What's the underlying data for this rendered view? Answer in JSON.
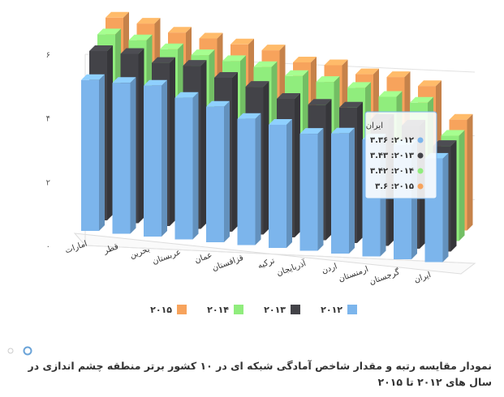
{
  "chart_data": {
    "type": "bar3d",
    "title": "نمودار مقایسه رتبه و مقدار شاخص آمادگی شبکه ای در ۱۰ کشور برتر منطقه چشم اندازی در سال های ۲۰۱۲ تا ۲۰۱۵",
    "categories": [
      "امارات",
      "قطر",
      "بحرین",
      "عربستان",
      "عمان",
      "قزاقستان",
      "ترکیه",
      "آذربایجان",
      "اردن",
      "ارمنستان",
      "گرجستان",
      "ایران"
    ],
    "series": [
      {
        "name": "۲۰۱۲",
        "color": "#7cb5ec",
        "values": [
          4.9,
          4.9,
          4.9,
          4.6,
          4.4,
          4.1,
          4.0,
          3.8,
          3.9,
          3.8,
          3.7,
          3.36
        ]
      },
      {
        "name": "۲۰۱۳",
        "color": "#434348",
        "values": [
          5.5,
          5.5,
          5.3,
          5.3,
          5.0,
          4.8,
          4.5,
          4.4,
          4.4,
          4.1,
          4.0,
          3.43
        ]
      },
      {
        "name": "۲۰۱۴",
        "color": "#90ed7d",
        "values": [
          5.7,
          5.6,
          5.4,
          5.3,
          5.2,
          5.1,
          4.9,
          4.8,
          4.7,
          4.5,
          4.4,
          3.42
        ]
      },
      {
        "name": "۲۰۱۵",
        "color": "#f7a35c",
        "values": [
          5.9,
          5.8,
          5.6,
          5.5,
          5.4,
          5.3,
          5.0,
          5.0,
          4.8,
          4.8,
          4.6,
          3.6
        ]
      }
    ],
    "ylim": [
      0,
      6
    ],
    "yticks": [
      {
        "value": 0,
        "label": "۰"
      },
      {
        "value": 2,
        "label": "۲"
      },
      {
        "value": 4,
        "label": "۴"
      },
      {
        "value": 6,
        "label": "۶"
      }
    ],
    "grid": true,
    "tooltip": {
      "title": "ایران",
      "lines": [
        "۳.۳۶ :۲۰۱۲",
        "۳.۴۳ :۲۰۱۳",
        "۳.۴۲ :۲۰۱۴",
        "۳.۶ :۲۰۱۵"
      ]
    }
  }
}
